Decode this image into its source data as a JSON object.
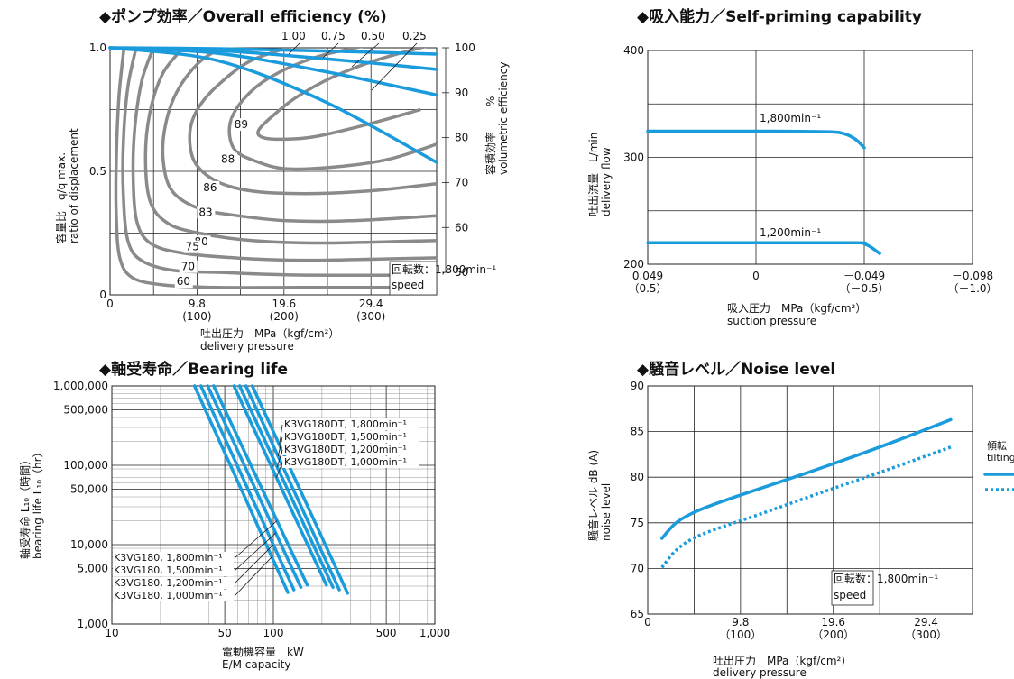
{
  "chart_data": [
    {
      "type": "line",
      "title": "◆ポンプ効率／Overall efficiency (%)",
      "xlabel": [
        "吐出圧力　MPa（kgf/cm²）",
        "delivery pressure"
      ],
      "ylabel": [
        "容量比　q/q max.",
        "ratio of displacement"
      ],
      "y2label": [
        "%",
        "容積効率",
        "volumetric efficiency"
      ],
      "xlim": [
        0,
        36.8
      ],
      "ylim": [
        0,
        1.0
      ],
      "y2lim": [
        45,
        100
      ],
      "x_ticks": [
        {
          "v": 0,
          "l": "0",
          "s": ""
        },
        {
          "v": 9.8,
          "l": "9.8",
          "s": "(100)"
        },
        {
          "v": 19.6,
          "l": "19.6",
          "s": "(200)"
        },
        {
          "v": 29.4,
          "l": "29.4",
          "s": "(300)"
        }
      ],
      "y_ticks": [
        {
          "v": 0,
          "l": "0"
        },
        {
          "v": 0.5,
          "l": "0.5"
        },
        {
          "v": 1.0,
          "l": "1.0"
        }
      ],
      "y2_ticks": [
        50,
        60,
        70,
        80,
        90,
        100
      ],
      "displacement_labels": [
        "1.00",
        "0.75",
        "0.50",
        "0.25"
      ],
      "volumetric_efficiency": [
        {
          "name": "1.00",
          "x": [
            0,
            12,
            24,
            36.8
          ],
          "y": [
            100,
            99.8,
            99.3,
            98.6
          ]
        },
        {
          "name": "0.75",
          "x": [
            0,
            12,
            24,
            36.8
          ],
          "y": [
            100,
            99.4,
            97.6,
            95.2
          ]
        },
        {
          "name": "0.50",
          "x": [
            0,
            12,
            24,
            36.8
          ],
          "y": [
            100,
            98.8,
            94.8,
            89.5
          ]
        },
        {
          "name": "0.25",
          "x": [
            0,
            12,
            24,
            36.8
          ],
          "y": [
            100,
            97.2,
            88.2,
            74.5
          ]
        }
      ],
      "efficiency_contours": [
        {
          "name": "89",
          "x": [
            36,
            30,
            25,
            21,
            18.5,
            16.8,
            17,
            19,
            23,
            29,
            35
          ],
          "y": [
            1.01,
            0.95,
            0.88,
            0.8,
            0.73,
            0.67,
            0.64,
            0.63,
            0.64,
            0.69,
            0.75
          ]
        },
        {
          "name": "88",
          "x": [
            29,
            23,
            18,
            15,
            13.5,
            14,
            16.5,
            20,
            26,
            31.5,
            36.8
          ],
          "y": [
            1.01,
            0.96,
            0.88,
            0.79,
            0.69,
            0.59,
            0.54,
            0.51,
            0.52,
            0.55,
            0.61
          ]
        },
        {
          "name": "86",
          "x": [
            21,
            16,
            12.5,
            10,
            9,
            9.5,
            12,
            16,
            22,
            29,
            36.8
          ],
          "y": [
            1.01,
            0.95,
            0.86,
            0.76,
            0.66,
            0.54,
            0.46,
            0.42,
            0.41,
            0.42,
            0.45
          ]
        },
        {
          "name": "83",
          "x": [
            13,
            10,
            7.5,
            6.2,
            6,
            7,
            10,
            14.5,
            20,
            27,
            36.8
          ],
          "y": [
            1.01,
            0.94,
            0.82,
            0.68,
            0.54,
            0.42,
            0.35,
            0.32,
            0.3,
            0.3,
            0.32
          ]
        },
        {
          "name": "80",
          "x": [
            8.5,
            6,
            4.5,
            4,
            4.5,
            6.5,
            10,
            16,
            24,
            36.8
          ],
          "y": [
            1.01,
            0.9,
            0.74,
            0.56,
            0.38,
            0.29,
            0.25,
            0.22,
            0.21,
            0.22
          ]
        },
        {
          "name": "75",
          "x": [
            5,
            3.6,
            2.8,
            2.6,
            3,
            4.5,
            8,
            14,
            22,
            36.8
          ],
          "y": [
            1.01,
            0.87,
            0.68,
            0.48,
            0.3,
            0.21,
            0.17,
            0.15,
            0.14,
            0.15
          ]
        },
        {
          "name": "70",
          "x": [
            3,
            2,
            1.5,
            1.5,
            2,
            3.5,
            7,
            13,
            22,
            36.8
          ],
          "y": [
            1.01,
            0.84,
            0.62,
            0.4,
            0.22,
            0.14,
            0.1,
            0.09,
            0.08,
            0.08
          ]
        },
        {
          "name": "60",
          "x": [
            1.6,
            1,
            0.7,
            0.7,
            1.1,
            2.5,
            6,
            12,
            22,
            36.8
          ],
          "y": [
            1.01,
            0.8,
            0.55,
            0.32,
            0.15,
            0.07,
            0.04,
            0.03,
            0.03,
            0.03
          ]
        }
      ],
      "annotation": [
        "回転数：1,800min⁻¹",
        "speed"
      ]
    },
    {
      "type": "line",
      "title": "◆吸入能力／Self-priming capability",
      "xlabel": [
        "吸入圧力　MPa（kgf/cm²）",
        "suction pressure"
      ],
      "ylabel": [
        "吐出流量　L/min",
        "delivery flow"
      ],
      "xlim": [
        0.049,
        -0.098
      ],
      "ylim": [
        200,
        400
      ],
      "x_ticks": [
        {
          "v": 0.049,
          "l": "0.049",
          "s": "（0.5）"
        },
        {
          "v": 0,
          "l": "0",
          "s": ""
        },
        {
          "v": -0.049,
          "l": "－0.049",
          "s": "（－0.5）"
        },
        {
          "v": -0.098,
          "l": "－0.098",
          "s": "（－1.0）"
        }
      ],
      "y_ticks": [
        200,
        300,
        400
      ],
      "series": [
        {
          "name": "1,800min⁻¹",
          "x": [
            0.049,
            0,
            -0.032,
            -0.04,
            -0.045,
            -0.049
          ],
          "y": [
            324.5,
            324.5,
            324,
            322,
            317,
            309
          ]
        },
        {
          "name": "1,200min⁻¹",
          "x": [
            0.049,
            0,
            -0.045,
            -0.049,
            -0.052,
            -0.056
          ],
          "y": [
            220,
            220,
            220,
            219,
            216,
            210
          ]
        }
      ]
    },
    {
      "type": "line",
      "title": "◆軸受寿命／Bearing life",
      "xlabel": [
        "電動機容量　kW",
        "E/M capacity"
      ],
      "ylabel": [
        "軸受寿命 L₁₀（時間）",
        "bearing life L₁₀（hr）"
      ],
      "x_scale": "log",
      "y_scale": "log",
      "xlim": [
        10,
        1000
      ],
      "ylim": [
        1000,
        1000000
      ],
      "x_ticks": [
        {
          "v": 10,
          "l": "10"
        },
        {
          "v": 50,
          "l": "50"
        },
        {
          "v": 100,
          "l": "100"
        },
        {
          "v": 500,
          "l": "500"
        },
        {
          "v": 1000,
          "l": "1,000"
        }
      ],
      "y_ticks": [
        {
          "v": 1000,
          "l": "1,000"
        },
        {
          "v": 5000,
          "l": "5,000"
        },
        {
          "v": 10000,
          "l": "10,000"
        },
        {
          "v": 50000,
          "l": "50,000"
        },
        {
          "v": 100000,
          "l": "100,000"
        },
        {
          "v": 500000,
          "l": "500,000"
        },
        {
          "v": 1000000,
          "l": "1,000,000"
        }
      ],
      "series": [
        {
          "name": "K3VG180, 1,000min⁻¹",
          "x": [
            32.5,
            123
          ],
          "y": [
            1000000,
            2500
          ]
        },
        {
          "name": "K3VG180, 1,200min⁻¹",
          "x": [
            35.6,
            134
          ],
          "y": [
            1000000,
            2700
          ]
        },
        {
          "name": "K3VG180, 1,500min⁻¹",
          "x": [
            39.2,
            148
          ],
          "y": [
            1000000,
            2900
          ]
        },
        {
          "name": "K3VG180, 1,800min⁻¹",
          "x": [
            42.7,
            162
          ],
          "y": [
            1000000,
            3100
          ]
        },
        {
          "name": "K3VG180DT, 1,000min⁻¹",
          "x": [
            57,
            213
          ],
          "y": [
            1000000,
            3100
          ]
        },
        {
          "name": "K3VG180DT, 1,200min⁻¹",
          "x": [
            61.8,
            234
          ],
          "y": [
            1000000,
            2900
          ]
        },
        {
          "name": "K3VG180DT, 1,500min⁻¹",
          "x": [
            67.6,
            256
          ],
          "y": [
            1000000,
            2700
          ]
        },
        {
          "name": "K3VG180DT, 1,800min⁻¹",
          "x": [
            74.1,
            288
          ],
          "y": [
            1000000,
            2450
          ]
        }
      ]
    },
    {
      "type": "line",
      "title": "◆騒音レベル／Noise level",
      "xlabel": [
        "吐出圧力　MPa（kgf/cm²）",
        "delivery pressure"
      ],
      "ylabel": [
        "騒音レベル dB (A)",
        "noise level"
      ],
      "xlim": [
        0,
        34.3
      ],
      "ylim": [
        65,
        90
      ],
      "x_ticks": [
        {
          "v": 0,
          "l": "0",
          "s": ""
        },
        {
          "v": 9.8,
          "l": "9.8",
          "s": "（100）"
        },
        {
          "v": 19.6,
          "l": "19.6",
          "s": "（200）"
        },
        {
          "v": 29.4,
          "l": "29.4",
          "s": "（300）"
        }
      ],
      "y_ticks": [
        65,
        70,
        75,
        80,
        85,
        90
      ],
      "legend": {
        "title": [
          "傾転",
          "tilting"
        ],
        "placement": "right"
      },
      "series": [
        {
          "name": "solid",
          "x": [
            1.5,
            3,
            5,
            8,
            12,
            18,
            25,
            32
          ],
          "y": [
            73.3,
            75,
            76.2,
            77.4,
            78.8,
            80.9,
            83.5,
            86.3
          ]
        },
        {
          "name": "dotted",
          "x": [
            1.5,
            3,
            5,
            8,
            12,
            18,
            25,
            32
          ],
          "y": [
            70.1,
            72,
            73.4,
            74.6,
            76,
            78.2,
            80.7,
            83.3
          ]
        }
      ],
      "annotation": [
        "回転数：1,800min⁻¹",
        "speed"
      ]
    }
  ]
}
